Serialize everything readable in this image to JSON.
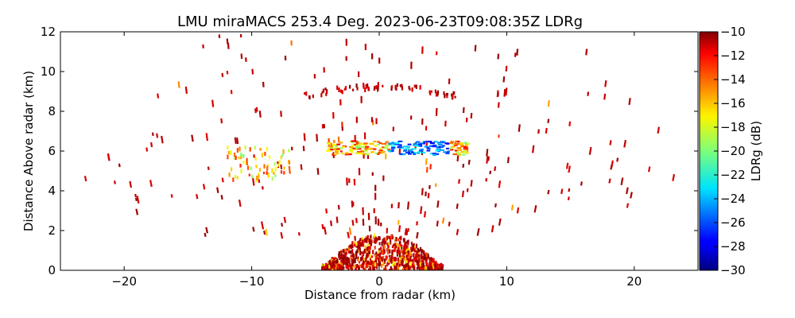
{
  "chart_data": {
    "type": "heatmap",
    "title": "LMU miraMACS 253.4 Deg. 2023-06-23T09:08:35Z  LDRg",
    "xlabel": "Distance from radar (km)",
    "ylabel": "Distance Above radar  (km)",
    "xlim": [
      -25,
      25
    ],
    "ylim": [
      0,
      12
    ],
    "x_ticks": [
      -20,
      -10,
      0,
      10,
      20
    ],
    "y_ticks": [
      0,
      2,
      4,
      6,
      8,
      10,
      12
    ],
    "colorbar": {
      "label": "LDRg (dB)",
      "range": [
        -30,
        -10
      ],
      "ticks": [
        -10,
        -12,
        -14,
        -16,
        -18,
        -20,
        -22,
        -24,
        -26,
        -28,
        -30
      ],
      "colormap": "jet"
    },
    "features": [
      {
        "name": "near-surface clutter",
        "x_range": [
          -4.5,
          5
        ],
        "y_range": [
          0,
          1.8
        ],
        "ldr_range": [
          -18,
          -10
        ]
      },
      {
        "name": "cloud layer",
        "x_range": [
          -4,
          7
        ],
        "y_range": [
          5.8,
          6.5
        ],
        "ldr_range": [
          -28,
          -12
        ]
      },
      {
        "name": "west layer",
        "x_range": [
          -12,
          -7
        ],
        "y_range": [
          4.5,
          6.2
        ],
        "ldr_range": [
          -20,
          -13
        ]
      },
      {
        "name": "arc band",
        "x_range": [
          -6,
          6
        ],
        "y_range": [
          8.6,
          9.4
        ],
        "ldr_range": [
          -12,
          -10
        ]
      }
    ]
  }
}
